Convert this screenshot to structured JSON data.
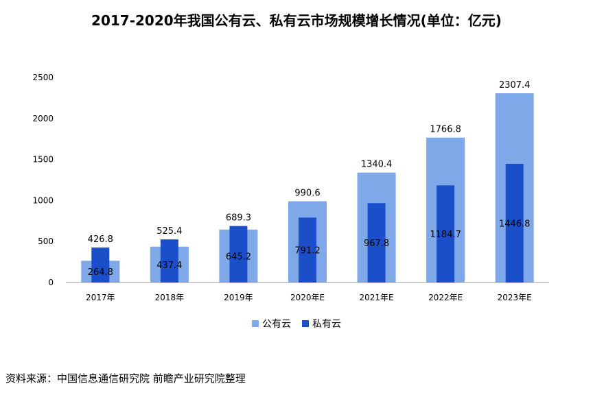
{
  "chart_data": {
    "type": "bar",
    "title": "2017-2020年我国公有云、私有云市场规模增长情况(单位：亿元)",
    "categories": [
      "2017年",
      "2018年",
      "2019年",
      "2020年E",
      "2021年E",
      "2022年E",
      "2023年E"
    ],
    "series": [
      {
        "name": "公有云",
        "values": [
          264.8,
          437.4,
          645.2,
          990.6,
          1340.4,
          1766.8,
          2307.4
        ],
        "color": "#7fa8e8"
      },
      {
        "name": "私有云",
        "values": [
          426.8,
          525.4,
          689.3,
          791.2,
          967.8,
          1184.7,
          1446.8
        ],
        "color": "#1b4fc9"
      }
    ],
    "public_labels": [
      "264.8",
      "437.4",
      "645.2",
      "990.6",
      "1340.4",
      "1766.8",
      "2307.4"
    ],
    "private_labels": [
      "426.8",
      "525.4",
      "689.3",
      "791.2",
      "967.8",
      "1184.7",
      "1446.8"
    ],
    "ylim": [
      0,
      2500
    ],
    "yticks": [
      0,
      500,
      1000,
      1500,
      2000,
      2500
    ],
    "ytick_labels": [
      "0",
      "500",
      "1000",
      "1500",
      "2000",
      "2500"
    ],
    "grid": false,
    "legend_position": "bottom"
  },
  "source_note": "资料来源：中国信息通信研究院 前瞻产业研究院整理"
}
